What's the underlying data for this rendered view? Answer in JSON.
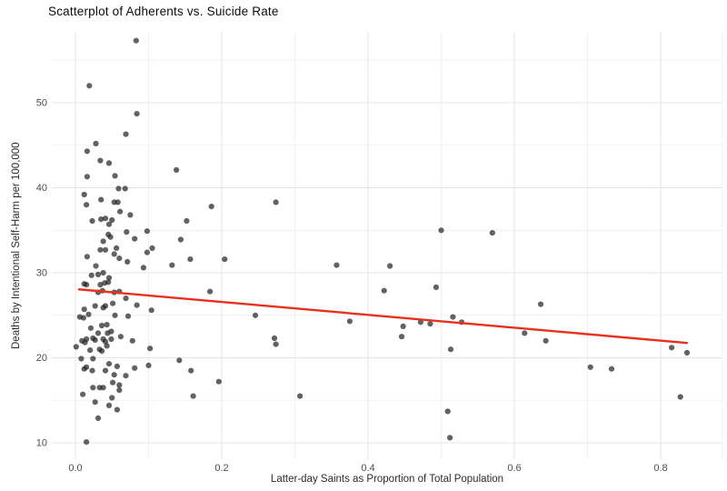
{
  "chart_data": {
    "type": "scatter",
    "title": "Scatterplot of Adherents vs. Suicide Rate",
    "xlabel": "Latter-day Saints as Proportion of Total Population",
    "ylabel": "Deaths by Intentional Self-Harm per 100,000",
    "legend": "none",
    "grid": true,
    "xlim": [
      -0.0323,
      0.8845
    ],
    "ylim": [
      8.08,
      58.34
    ],
    "x_ticks": [
      0.0,
      0.2,
      0.4,
      0.6,
      0.8
    ],
    "x_tick_labels": [
      "0.0",
      "0.2",
      "0.4",
      "0.6",
      "0.8"
    ],
    "y_ticks": [
      10,
      20,
      30,
      40,
      50
    ],
    "y_tick_labels": [
      "10",
      "20",
      "30",
      "40",
      "50"
    ],
    "x_minor_gridlines": [
      0.1,
      0.3,
      0.5,
      0.7,
      0.8845
    ],
    "y_minor_gridlines": [
      15,
      25,
      35,
      45,
      55
    ],
    "colors": {
      "point": "#1f1f1f",
      "point_opacity": 0.7,
      "trend": "#e8311d",
      "grid_major": "#e4e4e4",
      "grid_minor": "#f1f1f1",
      "background": "#ffffff"
    },
    "trend_line": {
      "type": "linear",
      "x1": 0.005,
      "y1": 28.05,
      "x2": 0.836,
      "y2": 21.75
    },
    "points": [
      [
        0.083,
        57.3
      ],
      [
        0.019,
        52.0
      ],
      [
        0.084,
        48.7
      ],
      [
        0.069,
        46.3
      ],
      [
        0.028,
        45.2
      ],
      [
        0.016,
        44.3
      ],
      [
        0.034,
        43.2
      ],
      [
        0.046,
        42.9
      ],
      [
        0.138,
        42.1
      ],
      [
        0.016,
        41.3
      ],
      [
        0.054,
        41.4
      ],
      [
        0.059,
        39.9
      ],
      [
        0.068,
        39.9
      ],
      [
        0.012,
        39.2
      ],
      [
        0.035,
        38.6
      ],
      [
        0.015,
        38.0
      ],
      [
        0.053,
        38.3
      ],
      [
        0.058,
        38.3
      ],
      [
        0.061,
        37.2
      ],
      [
        0.075,
        36.8
      ],
      [
        0.186,
        37.8
      ],
      [
        0.274,
        38.3
      ],
      [
        0.023,
        36.1
      ],
      [
        0.035,
        36.3
      ],
      [
        0.041,
        36.4
      ],
      [
        0.05,
        36.2
      ],
      [
        0.046,
        35.7
      ],
      [
        0.045,
        34.5
      ],
      [
        0.07,
        34.8
      ],
      [
        0.081,
        34.0
      ],
      [
        0.098,
        34.9
      ],
      [
        0.152,
        36.1
      ],
      [
        0.038,
        33.7
      ],
      [
        0.048,
        34.2
      ],
      [
        0.034,
        32.7
      ],
      [
        0.041,
        32.7
      ],
      [
        0.016,
        31.9
      ],
      [
        0.053,
        32.2
      ],
      [
        0.06,
        31.7
      ],
      [
        0.071,
        31.3
      ],
      [
        0.056,
        32.9
      ],
      [
        0.098,
        32.4
      ],
      [
        0.105,
        32.9
      ],
      [
        0.144,
        33.9
      ],
      [
        0.157,
        31.6
      ],
      [
        0.132,
        30.9
      ],
      [
        0.028,
        30.8
      ],
      [
        0.022,
        29.7
      ],
      [
        0.031,
        29.8
      ],
      [
        0.038,
        30.0
      ],
      [
        0.093,
        30.6
      ],
      [
        0.046,
        29.4
      ],
      [
        0.012,
        28.7
      ],
      [
        0.015,
        28.6
      ],
      [
        0.034,
        28.6
      ],
      [
        0.04,
        28.8
      ],
      [
        0.045,
        28.9
      ],
      [
        0.031,
        27.7
      ],
      [
        0.037,
        27.9
      ],
      [
        0.053,
        27.7
      ],
      [
        0.06,
        27.8
      ],
      [
        0.069,
        27.0
      ],
      [
        0.027,
        26.1
      ],
      [
        0.038,
        25.9
      ],
      [
        0.041,
        26.1
      ],
      [
        0.084,
        26.2
      ],
      [
        0.051,
        26.4
      ],
      [
        0.012,
        25.7
      ],
      [
        0.006,
        24.8
      ],
      [
        0.011,
        24.7
      ],
      [
        0.018,
        25.1
      ],
      [
        0.054,
        25.0
      ],
      [
        0.072,
        24.9
      ],
      [
        0.104,
        25.6
      ],
      [
        0.204,
        31.6
      ],
      [
        0.184,
        27.8
      ],
      [
        0.246,
        25.0
      ],
      [
        0.036,
        23.8
      ],
      [
        0.043,
        23.9
      ],
      [
        0.049,
        23.1
      ],
      [
        0.021,
        23.5
      ],
      [
        0.031,
        22.9
      ],
      [
        0.044,
        22.9
      ],
      [
        0.015,
        22.2
      ],
      [
        0.024,
        22.3
      ],
      [
        0.009,
        22.0
      ],
      [
        0.038,
        22.2
      ],
      [
        0.041,
        21.9
      ],
      [
        0.078,
        22.0
      ],
      [
        0.001,
        21.3
      ],
      [
        0.013,
        21.8
      ],
      [
        0.027,
        22.1
      ],
      [
        0.049,
        22.2
      ],
      [
        0.062,
        22.5
      ],
      [
        0.02,
        20.9
      ],
      [
        0.033,
        21.0
      ],
      [
        0.036,
        20.8
      ],
      [
        0.043,
        21.4
      ],
      [
        0.102,
        21.1
      ],
      [
        0.008,
        19.9
      ],
      [
        0.024,
        19.9
      ],
      [
        0.012,
        18.7
      ],
      [
        0.015,
        18.9
      ],
      [
        0.023,
        18.5
      ],
      [
        0.046,
        19.3
      ],
      [
        0.057,
        19.0
      ],
      [
        0.041,
        18.5
      ],
      [
        0.053,
        18.0
      ],
      [
        0.069,
        17.9
      ],
      [
        0.081,
        18.8
      ],
      [
        0.1,
        19.1
      ],
      [
        0.142,
        19.7
      ],
      [
        0.158,
        18.5
      ],
      [
        0.024,
        16.5
      ],
      [
        0.033,
        16.5
      ],
      [
        0.038,
        16.5
      ],
      [
        0.051,
        17.1
      ],
      [
        0.06,
        16.8
      ],
      [
        0.06,
        16.2
      ],
      [
        0.01,
        15.7
      ],
      [
        0.196,
        17.2
      ],
      [
        0.161,
        15.5
      ],
      [
        0.027,
        14.8
      ],
      [
        0.046,
        14.4
      ],
      [
        0.05,
        15.3
      ],
      [
        0.057,
        13.9
      ],
      [
        0.031,
        12.9
      ],
      [
        0.015,
        10.1
      ],
      [
        0.272,
        22.3
      ],
      [
        0.274,
        21.6
      ],
      [
        0.307,
        15.5
      ],
      [
        0.357,
        30.9
      ],
      [
        0.375,
        24.3
      ],
      [
        0.422,
        27.9
      ],
      [
        0.43,
        30.8
      ],
      [
        0.446,
        22.5
      ],
      [
        0.448,
        23.7
      ],
      [
        0.472,
        24.2
      ],
      [
        0.485,
        24.0
      ],
      [
        0.493,
        28.3
      ],
      [
        0.5,
        35.0
      ],
      [
        0.509,
        13.7
      ],
      [
        0.512,
        10.6
      ],
      [
        0.513,
        21.0
      ],
      [
        0.516,
        24.8
      ],
      [
        0.528,
        24.2
      ],
      [
        0.57,
        34.7
      ],
      [
        0.614,
        22.9
      ],
      [
        0.636,
        26.3
      ],
      [
        0.643,
        22.0
      ],
      [
        0.704,
        18.9
      ],
      [
        0.733,
        18.7
      ],
      [
        0.815,
        21.2
      ],
      [
        0.827,
        15.4
      ],
      [
        0.836,
        20.6
      ]
    ]
  }
}
